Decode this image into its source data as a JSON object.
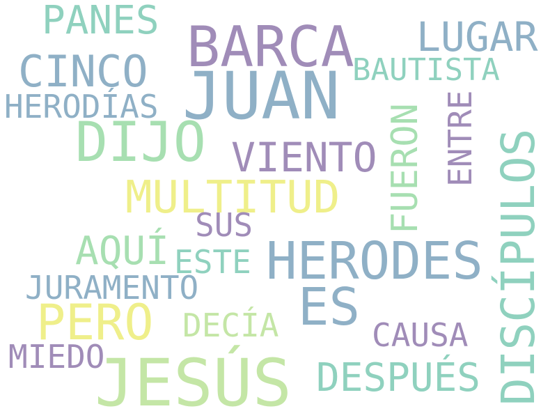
{
  "words": {
    "panes": "PANES",
    "barca": "BARCA",
    "lugar": "LUGAR",
    "cinco": "CINCO",
    "bautista": "BAUTISTA",
    "juan": "JUAN",
    "herodias": "HERODÍAS",
    "dijo": "DIJO",
    "viento": "VIENTO",
    "fueron": "FUERON",
    "entre": "ENTRE",
    "discipulos": "DISCÍPULOS",
    "multitud": "MULTITUD",
    "sus": "SUS",
    "aqui": "AQUÍ",
    "este": "ESTE",
    "herodes": "HERODES",
    "juramento": "JURAMENTO",
    "es": "ES",
    "pero": "PERO",
    "decia": "DECÍA",
    "causa": "CAUSA",
    "miedo": "MIEDO",
    "despues": "DESPUÉS",
    "jesus": "JESÚS"
  },
  "colors": {
    "teal": "#8fd1be",
    "purple": "#a08cb8",
    "blue": "#8fb0c6",
    "green": "#a7dfb1",
    "light_green": "#c4e6a6",
    "yellow": "#efef8a",
    "background": "#ffffff"
  }
}
